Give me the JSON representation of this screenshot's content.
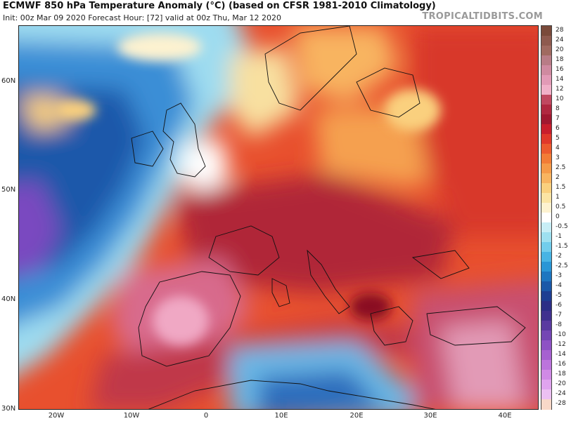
{
  "header": {
    "title": "ECMWF 850 hPa Temperature Anomaly (°C) (based on CFSR 1981-2010 Climatology)",
    "subtitle": "Init: 00z Mar 09 2020   Forecast Hour: [72]   valid at 00z Thu, Mar 12 2020",
    "brand": "TROPICALTIDBITS.COM"
  },
  "map": {
    "lat_labels": [
      "60N",
      "50N",
      "40N",
      "30N"
    ],
    "lon_labels": [
      "20W",
      "10W",
      "0",
      "10E",
      "20E",
      "30E",
      "40E"
    ]
  },
  "colorbar": {
    "labels": [
      "28",
      "24",
      "20",
      "18",
      "16",
      "14",
      "12",
      "10",
      "8",
      "7",
      "6",
      "5",
      "4",
      "3",
      "2.5",
      "2",
      "1.5",
      "1",
      "0.5",
      "0",
      "-0.5",
      "-1",
      "-1.5",
      "-2",
      "-2.5",
      "-3",
      "-4",
      "-5",
      "-6",
      "-7",
      "-8",
      "-10",
      "-12",
      "-14",
      "-16",
      "-18",
      "-20",
      "-24",
      "-28"
    ],
    "colors": [
      "#7a4a3a",
      "#8e5a4e",
      "#a06a60",
      "#b87c86",
      "#cf8aa0",
      "#e29ab6",
      "#f0b0c8",
      "#c04860",
      "#b02840",
      "#a01830",
      "#c81e2c",
      "#e0382a",
      "#ec5a2e",
      "#f27c36",
      "#f59a48",
      "#f8b460",
      "#fad07e",
      "#fbe4a4",
      "#fdf2d0",
      "#ffffff",
      "#c8eef6",
      "#9ee0f0",
      "#72cdec",
      "#48b4e4",
      "#2a96d6",
      "#1e76c0",
      "#1a58a8",
      "#1e3e92",
      "#2c2e86",
      "#40308e",
      "#5a3aa0",
      "#7446b4",
      "#8e52c4",
      "#a660d0",
      "#bc74dc",
      "#d08ae6",
      "#e0a4ee",
      "#ecc0f2",
      "#f8d8c8"
    ]
  }
}
